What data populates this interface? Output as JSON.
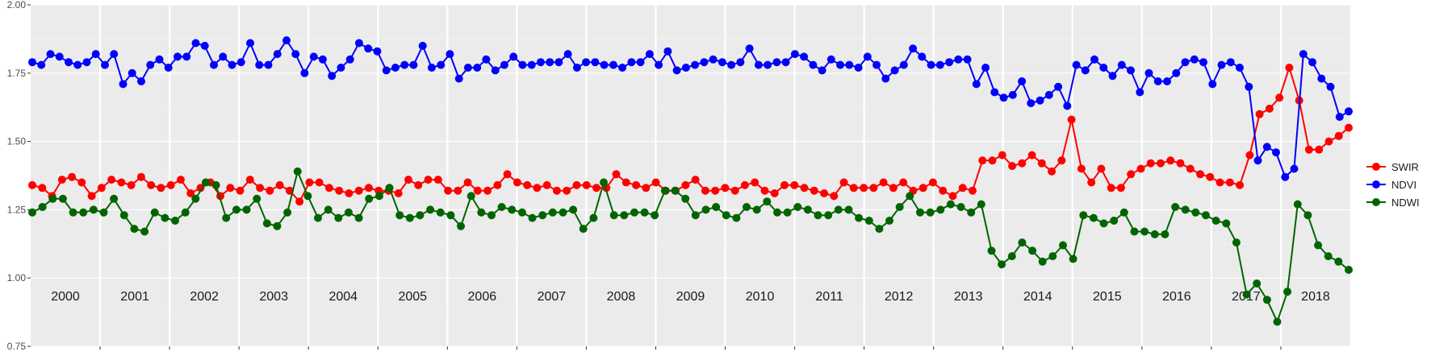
{
  "chart_data": {
    "type": "line",
    "title": "",
    "xlabel": "",
    "ylabel": "",
    "xlim": [
      2000.0,
      2018.9
    ],
    "ylim": [
      0.75,
      2.0
    ],
    "yticks": [
      "0.75",
      "1.00",
      "1.25",
      "1.50",
      "1.75",
      "2.00"
    ],
    "year_panels": [
      "2000",
      "2001",
      "2002",
      "2003",
      "2004",
      "2005",
      "2006",
      "2007",
      "2008",
      "2009",
      "2010",
      "2011",
      "2012",
      "2013",
      "2014",
      "2015",
      "2016",
      "2017",
      "2018"
    ],
    "grid": true,
    "legend_position": "right",
    "series": [
      {
        "name": "SWIR",
        "color": "#ff0000",
        "x": [
          2000.0,
          2000.05,
          2000.18,
          2000.38,
          2000.58,
          2000.78,
          2000.92,
          2000.96,
          2001.0,
          2001.97,
          2002.62,
          2002.75,
          2002.95,
          2003.94,
          2004.03,
          2004.16,
          2004.27,
          2004.5,
          2004.6,
          2005.32,
          2005.45,
          2005.51,
          2005.59,
          2005.63,
          2005.72,
          2005.87,
          2005.96,
          2006.09,
          2006.15,
          2006.55,
          2006.75,
          2006.83,
          2006.99,
          2007.07,
          2007.19,
          2007.31,
          2007.37,
          2007.55,
          2007.72,
          2007.82,
          2007.88,
          2008.25,
          2008.31,
          2008.44,
          2008.52,
          2008.63,
          2008.75,
          2008.87,
          2008.95,
          2009.09,
          2009.3,
          2009.37,
          2009.47,
          2009.56,
          2009.63,
          2009.67,
          2009.78,
          2009.86,
          2009.96,
          2010.11,
          2010.31,
          2010.37,
          2010.45,
          2010.5,
          2010.58,
          2010.62,
          2010.73,
          2011.29,
          2011.71,
          2011.94,
          2012.0,
          2012.28,
          2012.47,
          2012.69,
          2012.83,
          2012.95,
          2013.09,
          2013.2,
          2013.31,
          2013.38,
          2013.59,
          2013.84,
          2013.92,
          2014.04,
          2014.56,
          2014.75,
          2014.78,
          2014.91,
          2014.96,
          2015.04,
          2015.15,
          2015.33,
          2015.55,
          2015.67,
          2015.71,
          2015.83,
          2015.89,
          2015.96,
          2016.01,
          2016.06,
          2016.09,
          2016.17,
          2016.23,
          2016.29,
          2016.33,
          2016.43,
          2016.53,
          2016.75,
          2017.42,
          2017.53,
          2017.67,
          2017.7,
          2017.82,
          2018.12,
          2018.16,
          2018.23,
          2018.37,
          2018.53,
          2018.73,
          2018.88,
          2018.94,
          2019.0,
          2019.05,
          2019.11,
          2019.17
        ],
        "values": [
          1.34,
          1.33,
          1.32,
          1.3,
          1.36,
          1.37,
          1.36,
          1.3,
          1.33,
          1.36,
          1.35,
          1.34,
          1.37,
          1.34,
          1.33,
          1.34,
          1.36,
          1.31,
          1.33,
          1.36,
          1.33,
          1.32,
          1.33,
          1.32,
          1.34,
          1.29,
          1.35,
          1.36,
          1.36,
          1.33,
          1.32,
          1.32,
          1.31,
          1.33,
          1.3,
          1.31,
          1.32,
          1.34,
          1.34,
          1.36,
          1.28,
          1.35,
          1.34,
          1.33,
          1.34,
          1.33,
          1.32,
          1.31,
          1.33,
          1.33,
          1.36,
          1.36,
          1.32,
          1.32,
          1.34,
          1.35,
          1.32,
          1.32,
          1.34,
          1.38,
          1.35,
          1.34,
          1.33,
          1.34,
          1.33,
          1.32,
          1.33,
          1.34,
          1.33,
          1.34,
          1.32,
          1.34,
          1.38,
          1.35,
          1.34,
          1.33,
          1.33,
          1.31,
          1.33,
          1.34,
          1.32,
          1.31,
          1.33,
          1.31,
          1.36,
          1.33,
          1.35,
          1.33,
          1.32,
          1.31,
          1.34,
          1.32,
          1.33,
          1.32,
          1.32,
          1.33,
          1.32,
          1.31,
          1.33,
          1.33,
          1.32,
          1.32,
          1.31,
          1.31,
          1.32,
          1.31,
          1.3,
          1.32,
          1.28,
          1.36,
          1.32,
          1.31,
          1.32,
          1.44,
          1.43,
          1.44,
          1.45,
          1.41,
          1.43,
          1.42,
          1.45,
          1.42,
          1.4,
          1.38,
          1.4
        ],
        "display_values": [
          1.34,
          1.33,
          1.3,
          1.36,
          1.37,
          1.35,
          1.3,
          1.33,
          1.36,
          1.35,
          1.34,
          1.37,
          1.34,
          1.33,
          1.34,
          1.36,
          1.31,
          1.33,
          1.35,
          1.3,
          1.33,
          1.32,
          1.36,
          1.33,
          1.32,
          1.34,
          1.32,
          1.28,
          1.35,
          1.35,
          1.33,
          1.32,
          1.31,
          1.32,
          1.33,
          1.32,
          1.32,
          1.31,
          1.36,
          1.34,
          1.36,
          1.36,
          1.32,
          1.32,
          1.35,
          1.32,
          1.32,
          1.34,
          1.38,
          1.35,
          1.34,
          1.33,
          1.34,
          1.32,
          1.32,
          1.34,
          1.34,
          1.33,
          1.33,
          1.38,
          1.35,
          1.34,
          1.33,
          1.35,
          1.32,
          1.32,
          1.34,
          1.36,
          1.32,
          1.32,
          1.33,
          1.32,
          1.34,
          1.35,
          1.32,
          1.31,
          1.34,
          1.34,
          1.33,
          1.32,
          1.31,
          1.3,
          1.35,
          1.33,
          1.33,
          1.33,
          1.35,
          1.33,
          1.35,
          1.32,
          1.33,
          1.35,
          1.32,
          1.3,
          1.33,
          1.32,
          1.43,
          1.43,
          1.45,
          1.41,
          1.42,
          1.45,
          1.42,
          1.39,
          1.43,
          1.58,
          1.4,
          1.35,
          1.4,
          1.33,
          1.33,
          1.38,
          1.4,
          1.42,
          1.42,
          1.43,
          1.42,
          1.4,
          1.38,
          1.37,
          1.35,
          1.35,
          1.34,
          1.45,
          1.6,
          1.62,
          1.66,
          1.77,
          1.65,
          1.47,
          1.47,
          1.5,
          1.52,
          1.55
        ]
      },
      {
        "name": "NDVI",
        "color": "#0000ff",
        "values": [
          1.79,
          1.78,
          1.82,
          1.81,
          1.79,
          1.78,
          1.79,
          1.82,
          1.78,
          1.82,
          1.71,
          1.75,
          1.72,
          1.78,
          1.8,
          1.77,
          1.81,
          1.81,
          1.86,
          1.85,
          1.78,
          1.81,
          1.78,
          1.79,
          1.86,
          1.78,
          1.78,
          1.82,
          1.87,
          1.82,
          1.75,
          1.81,
          1.8,
          1.74,
          1.77,
          1.8,
          1.86,
          1.84,
          1.83,
          1.76,
          1.77,
          1.78,
          1.78,
          1.85,
          1.77,
          1.78,
          1.82,
          1.73,
          1.77,
          1.77,
          1.8,
          1.76,
          1.78,
          1.81,
          1.78,
          1.78,
          1.79,
          1.79,
          1.79,
          1.82,
          1.77,
          1.79,
          1.79,
          1.78,
          1.78,
          1.77,
          1.79,
          1.79,
          1.82,
          1.78,
          1.83,
          1.76,
          1.77,
          1.78,
          1.79,
          1.8,
          1.79,
          1.78,
          1.79,
          1.84,
          1.78,
          1.78,
          1.79,
          1.79,
          1.82,
          1.81,
          1.78,
          1.76,
          1.8,
          1.78,
          1.78,
          1.77,
          1.81,
          1.78,
          1.73,
          1.76,
          1.78,
          1.84,
          1.81,
          1.78,
          1.78,
          1.79,
          1.8,
          1.8,
          1.71,
          1.77,
          1.68,
          1.66,
          1.67,
          1.72,
          1.64,
          1.65,
          1.67,
          1.7,
          1.63,
          1.78,
          1.76,
          1.8,
          1.77,
          1.74,
          1.78,
          1.76,
          1.68,
          1.75,
          1.72,
          1.72,
          1.75,
          1.79,
          1.8,
          1.79,
          1.71,
          1.78,
          1.79,
          1.77,
          1.7,
          1.43,
          1.48,
          1.46,
          1.37,
          1.4,
          1.82,
          1.79,
          1.73,
          1.7,
          1.59,
          1.61
        ]
      },
      {
        "name": "NDWI",
        "color": "#006400",
        "values": [
          1.24,
          1.26,
          1.29,
          1.29,
          1.24,
          1.24,
          1.25,
          1.24,
          1.29,
          1.23,
          1.18,
          1.17,
          1.24,
          1.22,
          1.21,
          1.24,
          1.29,
          1.35,
          1.34,
          1.22,
          1.25,
          1.25,
          1.29,
          1.2,
          1.19,
          1.24,
          1.39,
          1.3,
          1.22,
          1.25,
          1.22,
          1.24,
          1.22,
          1.29,
          1.3,
          1.33,
          1.23,
          1.22,
          1.23,
          1.25,
          1.24,
          1.23,
          1.19,
          1.3,
          1.24,
          1.23,
          1.26,
          1.25,
          1.24,
          1.22,
          1.23,
          1.24,
          1.24,
          1.25,
          1.18,
          1.22,
          1.35,
          1.23,
          1.23,
          1.24,
          1.24,
          1.23,
          1.32,
          1.32,
          1.29,
          1.23,
          1.25,
          1.26,
          1.23,
          1.22,
          1.26,
          1.25,
          1.28,
          1.24,
          1.24,
          1.26,
          1.25,
          1.23,
          1.23,
          1.25,
          1.25,
          1.22,
          1.21,
          1.18,
          1.21,
          1.26,
          1.3,
          1.24,
          1.24,
          1.25,
          1.27,
          1.26,
          1.24,
          1.27,
          1.1,
          1.05,
          1.08,
          1.13,
          1.1,
          1.06,
          1.08,
          1.12,
          1.07,
          1.23,
          1.22,
          1.2,
          1.21,
          1.24,
          1.17,
          1.17,
          1.16,
          1.16,
          1.26,
          1.25,
          1.24,
          1.23,
          1.21,
          1.2,
          1.13,
          0.94,
          0.98,
          0.92,
          0.84,
          0.95,
          1.27,
          1.23,
          1.12,
          1.08,
          1.06,
          1.03
        ]
      }
    ]
  }
}
